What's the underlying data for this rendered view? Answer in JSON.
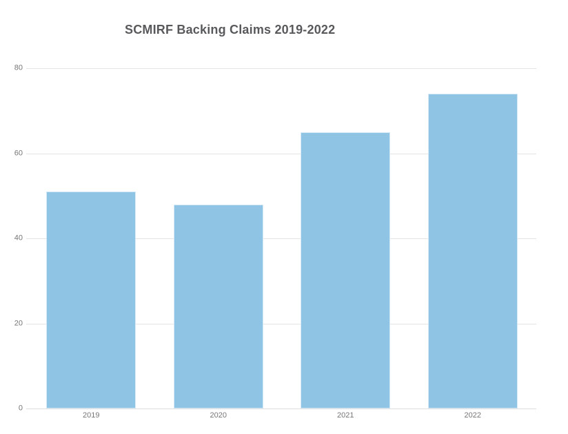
{
  "chart_data": {
    "type": "bar",
    "title": "SCMIRF Backing Claims 2019-2022",
    "categories": [
      "2019",
      "2020",
      "2021",
      "2022"
    ],
    "values": [
      51,
      48,
      65,
      74
    ],
    "xlabel": "",
    "ylabel": "",
    "ylim": [
      0,
      80
    ],
    "yticks": [
      0,
      20,
      40,
      60,
      80
    ],
    "grid": true,
    "legend": false,
    "colors": {
      "bar_fill": "#90c4e4",
      "bar_edge": "#d6e9f6",
      "gridline": "#e4e4e4",
      "baseline": "#dedede",
      "title_text": "#58595b",
      "tick_text": "#757575",
      "background": "#ffffff"
    }
  }
}
